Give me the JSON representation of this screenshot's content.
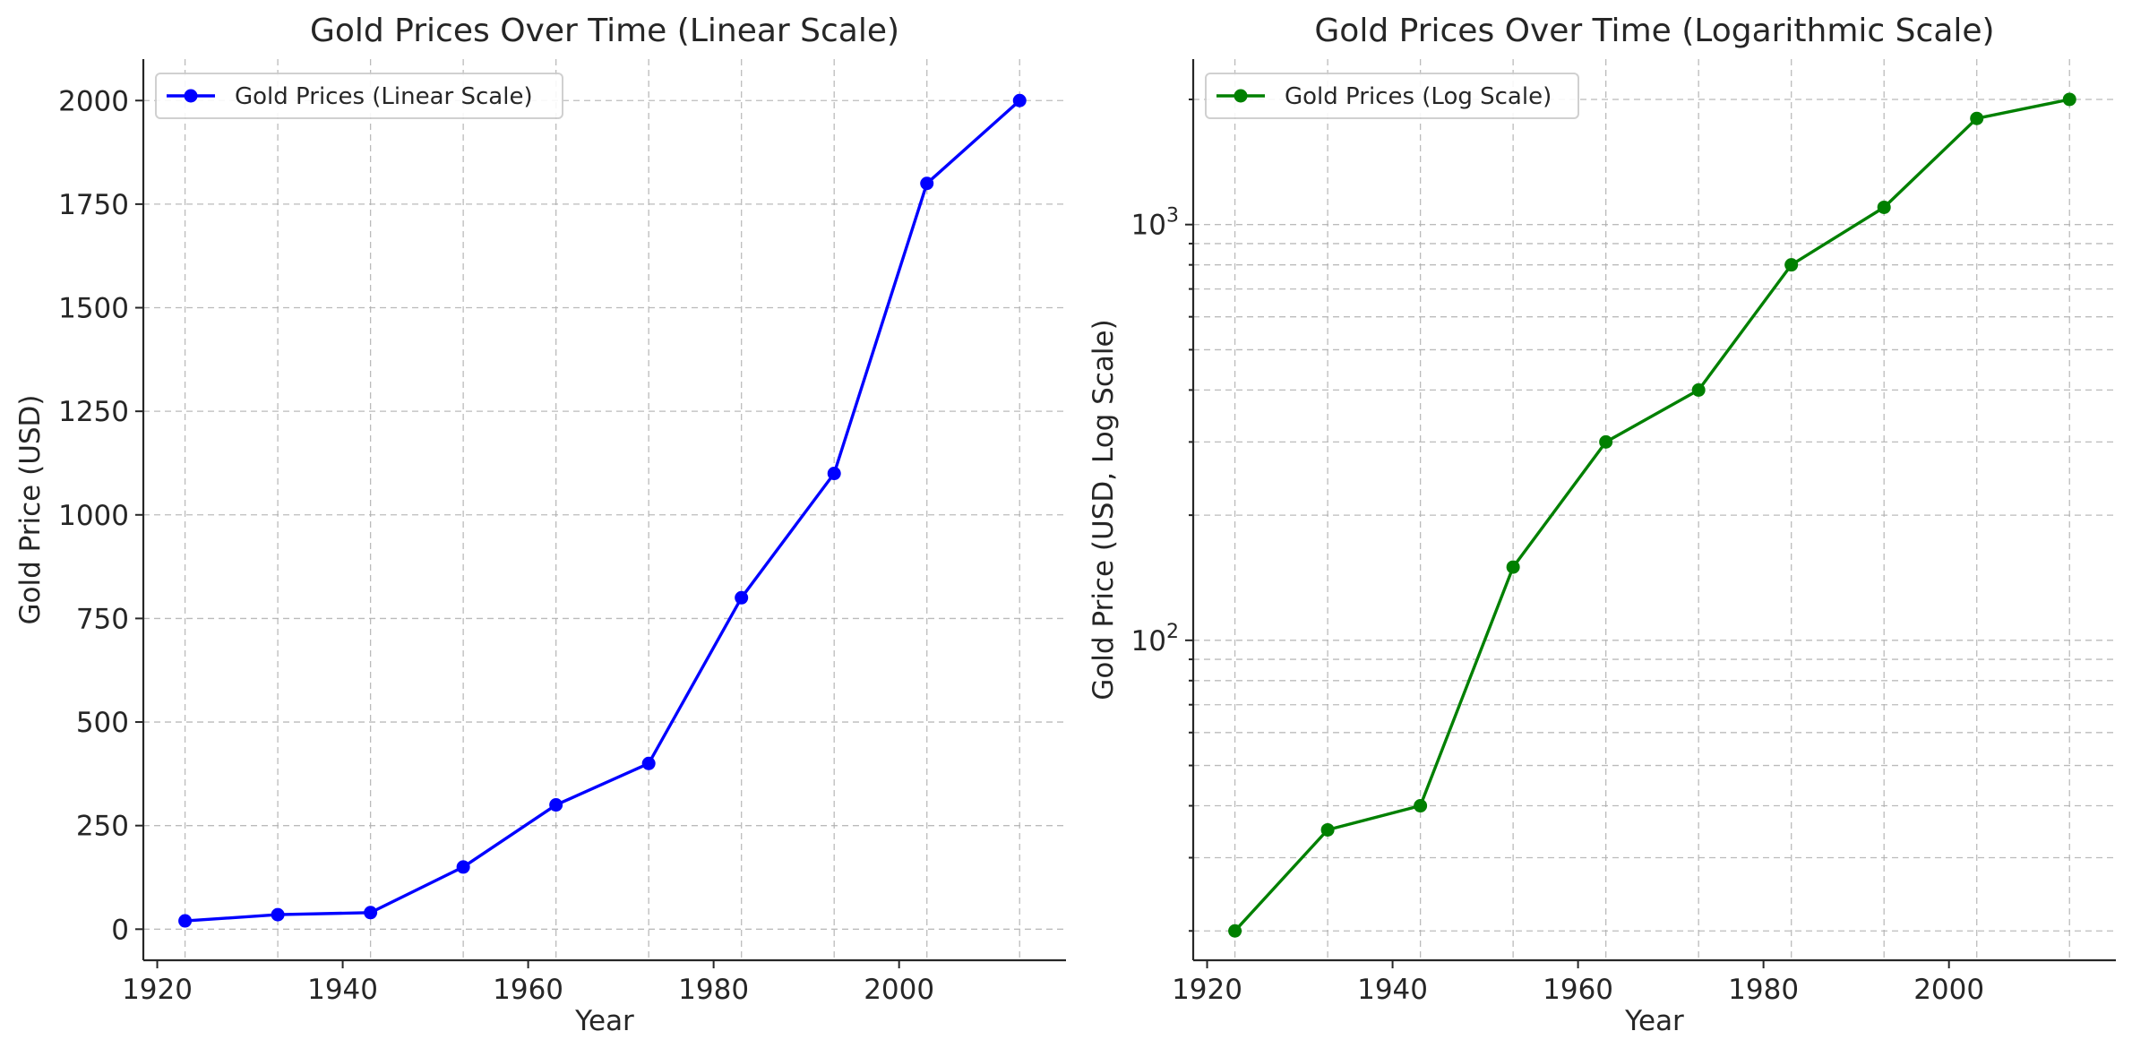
{
  "chart_data": [
    {
      "type": "line",
      "title": "Gold Prices Over Time (Linear Scale)",
      "xlabel": "Year",
      "ylabel": "Gold Price (USD)",
      "yscale": "linear",
      "xlim": [
        1918.5,
        2018
      ],
      "ylim": [
        -75,
        2100
      ],
      "xticks": [
        1920,
        1940,
        1960,
        1980,
        2000
      ],
      "yticks": [
        0,
        250,
        500,
        750,
        1000,
        1250,
        1500,
        1750,
        2000
      ],
      "grid": true,
      "legend_position": "top-left",
      "series": [
        {
          "name": "Gold Prices (Linear Scale)",
          "color": "#0000ff",
          "marker": "circle",
          "x": [
            1923,
            1933,
            1943,
            1953,
            1963,
            1973,
            1983,
            1993,
            2003,
            2013
          ],
          "y": [
            20,
            35,
            40,
            150,
            300,
            400,
            800,
            1100,
            1800,
            2000
          ]
        }
      ]
    },
    {
      "type": "line",
      "title": "Gold Prices Over Time (Logarithmic Scale)",
      "xlabel": "Year",
      "ylabel": "Gold Price (USD, Log Scale)",
      "yscale": "log",
      "xlim": [
        1918.5,
        2018
      ],
      "ylim": [
        17,
        2500
      ],
      "xticks": [
        1920,
        1940,
        1960,
        1980,
        2000
      ],
      "yticks_major": [
        100,
        1000
      ],
      "yticks_minor": [
        20,
        30,
        40,
        50,
        60,
        70,
        80,
        90,
        200,
        300,
        400,
        500,
        600,
        700,
        800,
        900,
        2000
      ],
      "grid": true,
      "legend_position": "top-left",
      "series": [
        {
          "name": "Gold Prices (Log Scale)",
          "color": "#008000",
          "marker": "circle",
          "x": [
            1923,
            1933,
            1943,
            1953,
            1963,
            1973,
            1983,
            1993,
            2003,
            2013
          ],
          "y": [
            20,
            35,
            40,
            150,
            300,
            400,
            800,
            1100,
            1800,
            2000
          ]
        }
      ]
    }
  ]
}
